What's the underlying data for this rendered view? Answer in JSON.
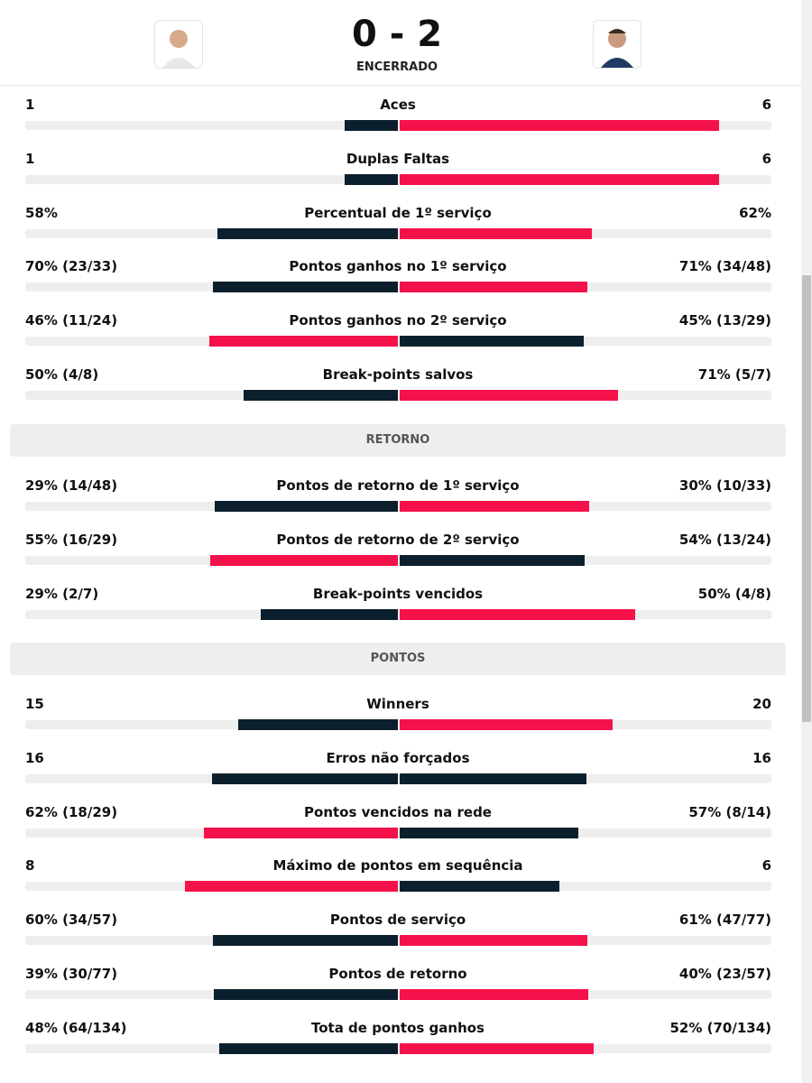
{
  "header": {
    "score": "0 - 2",
    "status": "ENCERRADO"
  },
  "sections": [
    {
      "rows": [
        {
          "label": "Aces",
          "left": 1,
          "right": 6
        },
        {
          "label": "Duplas Faltas",
          "left": 1,
          "right": 6
        },
        {
          "label": "Percentual de 1º serviço",
          "left": {
            "value": 58,
            "label": "58%"
          },
          "right": {
            "value": 62,
            "label": "62%"
          }
        },
        {
          "label": "Pontos ganhos no 1º serviço",
          "left": {
            "value": 70,
            "label": "70% (23/33)"
          },
          "right": {
            "value": 71,
            "label": "71% (34/48)"
          }
        },
        {
          "label": "Pontos ganhos no 2º serviço",
          "left": {
            "value": 46,
            "label": "46% (11/24)"
          },
          "right": {
            "value": 45,
            "label": "45% (13/29)"
          }
        },
        {
          "label": "Break-points salvos",
          "left": {
            "value": 50,
            "label": "50% (4/8)"
          },
          "right": {
            "value": 71,
            "label": "71% (5/7)"
          }
        }
      ]
    },
    {
      "title": "RETORNO",
      "rows": [
        {
          "label": "Pontos de retorno de 1º serviço",
          "left": {
            "value": 29,
            "label": "29% (14/48)"
          },
          "right": {
            "value": 30,
            "label": "30% (10/33)"
          }
        },
        {
          "label": "Pontos de retorno de 2º serviço",
          "left": {
            "value": 55,
            "label": "55% (16/29)"
          },
          "right": {
            "value": 54,
            "label": "54% (13/24)"
          }
        },
        {
          "label": "Break-points vencidos",
          "left": {
            "value": 29,
            "label": "29% (2/7)"
          },
          "right": {
            "value": 50,
            "label": "50% (4/8)"
          }
        }
      ]
    },
    {
      "title": "PONTOS",
      "rows": [
        {
          "label": "Winners",
          "left": 15,
          "right": 20
        },
        {
          "label": "Erros não forçados",
          "left": 16,
          "right": 16
        },
        {
          "label": "Pontos vencidos na rede",
          "left": {
            "value": 62,
            "label": "62% (18/29)"
          },
          "right": {
            "value": 57,
            "label": "57% (8/14)"
          }
        },
        {
          "label": "Máximo de pontos em sequência",
          "left": 8,
          "right": 6
        },
        {
          "label": "Pontos de serviço",
          "left": {
            "value": 60,
            "label": "60% (34/57)"
          },
          "right": {
            "value": 61,
            "label": "61% (47/77)"
          }
        },
        {
          "label": "Pontos de retorno",
          "left": {
            "value": 39,
            "label": "39% (30/77)"
          },
          "right": {
            "value": 40,
            "label": "40% (23/57)"
          }
        },
        {
          "label": "Tota de pontos ganhos",
          "left": {
            "value": 48,
            "label": "48% (64/134)"
          },
          "right": {
            "value": 52,
            "label": "52% (70/134)"
          }
        }
      ]
    }
  ]
}
